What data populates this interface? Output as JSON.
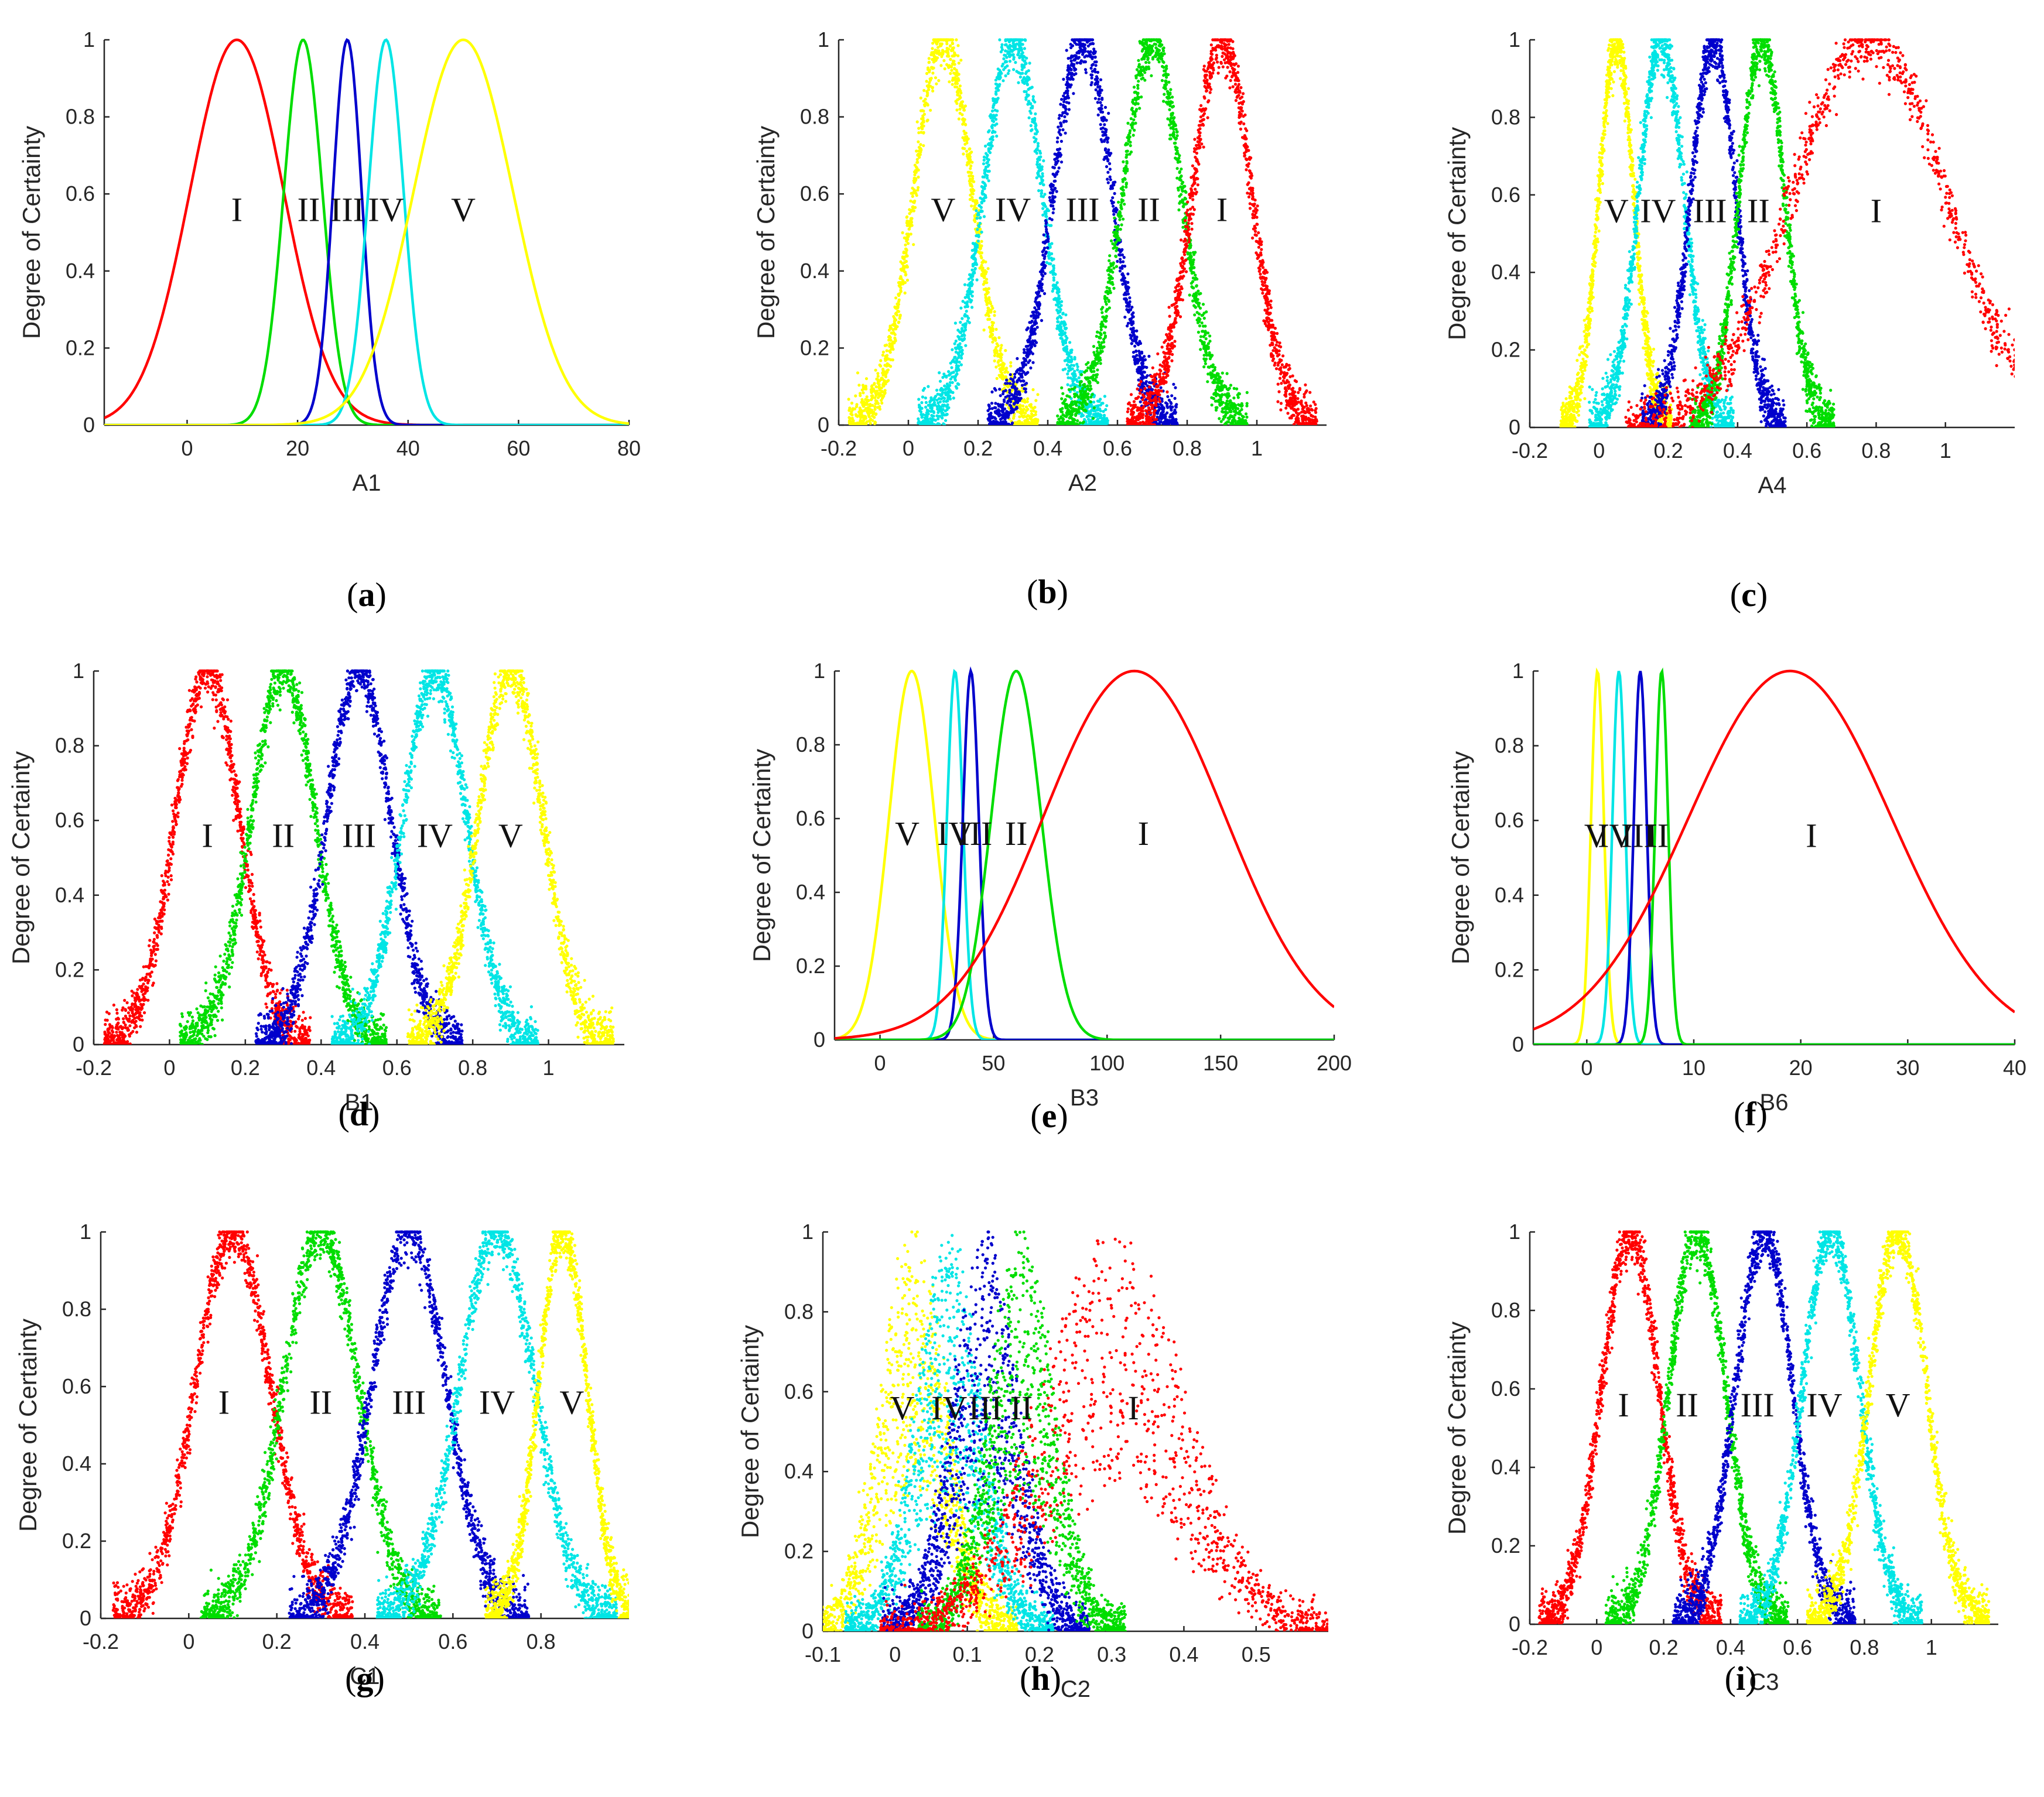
{
  "figure": {
    "y_axis_label": "Degree of Certainty",
    "y_ticks": [
      "0",
      "0.2",
      "0.4",
      "0.6",
      "0.8",
      "1"
    ]
  },
  "chart_data": [
    {
      "id": "a",
      "type": "line",
      "panel_label": "a",
      "xlabel": "A1",
      "xlim": [
        -15,
        80
      ],
      "ylim": [
        0,
        1
      ],
      "xticks": [
        0,
        20,
        40,
        60,
        80
      ],
      "xtick_labels": [
        "0",
        "20",
        "40",
        "60",
        "80"
      ],
      "series": [
        {
          "name": "I",
          "color": "#ff0000",
          "mean": 9,
          "sd": 8.5,
          "style": "line",
          "label_x": 9
        },
        {
          "name": "II",
          "color": "#00dd00",
          "mean": 21,
          "sd": 3.5,
          "style": "line",
          "label_x": 22
        },
        {
          "name": "III",
          "color": "#0000cc",
          "mean": 29,
          "sd": 2.6,
          "style": "line",
          "label_x": 29
        },
        {
          "name": "IV",
          "color": "#00e5e5",
          "mean": 36,
          "sd": 3.2,
          "style": "line",
          "label_x": 36
        },
        {
          "name": "V",
          "color": "#ffff00",
          "mean": 50,
          "sd": 9,
          "style": "line",
          "label_x": 50
        }
      ]
    },
    {
      "id": "b",
      "type": "scatter",
      "panel_label": "b",
      "xlabel": "A2",
      "xlim": [
        -0.2,
        1.2
      ],
      "ylim": [
        0,
        1
      ],
      "xticks": [
        -0.2,
        0,
        0.2,
        0.4,
        0.6,
        0.8,
        1
      ],
      "xtick_labels": [
        "-0.2",
        "0",
        "0.2",
        "0.4",
        "0.6",
        "0.8",
        "1"
      ],
      "series": [
        {
          "name": "V",
          "color": "#ffff00",
          "mean": 0.1,
          "sd": 0.085,
          "style": "scatter",
          "label_x": 0.1
        },
        {
          "name": "IV",
          "color": "#00e5e5",
          "mean": 0.3,
          "sd": 0.085,
          "style": "scatter",
          "label_x": 0.3
        },
        {
          "name": "III",
          "color": "#0000cc",
          "mean": 0.5,
          "sd": 0.085,
          "style": "scatter",
          "label_x": 0.5
        },
        {
          "name": "II",
          "color": "#00dd00",
          "mean": 0.7,
          "sd": 0.085,
          "style": "scatter",
          "label_x": 0.69
        },
        {
          "name": "I",
          "color": "#ff0000",
          "mean": 0.9,
          "sd": 0.085,
          "style": "scatter",
          "label_x": 0.9
        }
      ]
    },
    {
      "id": "c",
      "type": "scatter",
      "panel_label": "c",
      "xlabel": "A4",
      "xlim": [
        -0.2,
        1.2
      ],
      "ylim": [
        0,
        1
      ],
      "xticks": [
        -0.2,
        0,
        0.2,
        0.4,
        0.6,
        0.8,
        1
      ],
      "xtick_labels": [
        "-0.2",
        "0",
        "0.2",
        "0.4",
        "0.6",
        "0.8",
        "1"
      ],
      "series": [
        {
          "name": "V",
          "color": "#ffff00",
          "mean": 0.05,
          "sd": 0.05,
          "style": "scatter",
          "label_x": 0.05
        },
        {
          "name": "IV",
          "color": "#00e5e5",
          "mean": 0.18,
          "sd": 0.065,
          "style": "scatter",
          "label_x": 0.17
        },
        {
          "name": "III",
          "color": "#0000cc",
          "mean": 0.33,
          "sd": 0.065,
          "style": "scatter",
          "label_x": 0.32
        },
        {
          "name": "II",
          "color": "#00dd00",
          "mean": 0.47,
          "sd": 0.065,
          "style": "scatter",
          "label_x": 0.46
        },
        {
          "name": "I",
          "color": "#ff0000",
          "mean": 0.78,
          "sd": 0.22,
          "style": "scatter",
          "label_x": 0.8
        }
      ]
    },
    {
      "id": "d",
      "type": "scatter",
      "panel_label": "d",
      "xlabel": "B1",
      "xlim": [
        -0.2,
        1.2
      ],
      "ylim": [
        0,
        1
      ],
      "xticks": [
        -0.2,
        0,
        0.2,
        0.4,
        0.6,
        0.8,
        1
      ],
      "xtick_labels": [
        "-0.2",
        "0",
        "0.2",
        "0.4",
        "0.6",
        "0.8",
        "1"
      ],
      "series": [
        {
          "name": "I",
          "color": "#ff0000",
          "mean": 0.1,
          "sd": 0.085,
          "style": "scatter",
          "label_x": 0.1
        },
        {
          "name": "II",
          "color": "#00dd00",
          "mean": 0.3,
          "sd": 0.085,
          "style": "scatter",
          "label_x": 0.3
        },
        {
          "name": "III",
          "color": "#0000cc",
          "mean": 0.5,
          "sd": 0.085,
          "style": "scatter",
          "label_x": 0.5
        },
        {
          "name": "IV",
          "color": "#00e5e5",
          "mean": 0.7,
          "sd": 0.085,
          "style": "scatter",
          "label_x": 0.7
        },
        {
          "name": "V",
          "color": "#ffff00",
          "mean": 0.9,
          "sd": 0.085,
          "style": "scatter",
          "label_x": 0.9
        }
      ]
    },
    {
      "id": "e",
      "type": "line",
      "panel_label": "e",
      "xlabel": "B3",
      "xlim": [
        -20,
        200
      ],
      "ylim": [
        0,
        1
      ],
      "xticks": [
        0,
        50,
        100,
        150,
        200
      ],
      "xtick_labels": [
        "0",
        "50",
        "100",
        "150",
        "200"
      ],
      "series": [
        {
          "name": "V",
          "color": "#ffff00",
          "mean": 14,
          "sd": 10,
          "style": "line",
          "label_x": 12
        },
        {
          "name": "IV",
          "color": "#00e5e5",
          "mean": 33,
          "sd": 3.5,
          "style": "line",
          "label_x": 33
        },
        {
          "name": "III",
          "color": "#0000cc",
          "mean": 40,
          "sd": 3.5,
          "style": "line",
          "label_x": 42
        },
        {
          "name": "II",
          "color": "#00dd00",
          "mean": 60,
          "sd": 11,
          "style": "line",
          "label_x": 60
        },
        {
          "name": "I",
          "color": "#ff0000",
          "mean": 112,
          "sd": 40,
          "style": "line",
          "label_x": 116
        }
      ]
    },
    {
      "id": "f",
      "type": "line",
      "panel_label": "f",
      "xlabel": "B6",
      "xlim": [
        -5,
        40
      ],
      "ylim": [
        0,
        1
      ],
      "xticks": [
        0,
        10,
        20,
        30,
        40
      ],
      "xtick_labels": [
        "0",
        "10",
        "20",
        "30",
        "40"
      ],
      "series": [
        {
          "name": "V",
          "color": "#ffff00",
          "mean": 1,
          "sd": 0.6,
          "style": "line",
          "label_x": 0.9
        },
        {
          "name": "IV",
          "color": "#00e5e5",
          "mean": 3,
          "sd": 0.6,
          "style": "line",
          "label_x": 2.7
        },
        {
          "name": "III",
          "color": "#0000cc",
          "mean": 5,
          "sd": 0.6,
          "style": "line",
          "label_x": 4.8
        },
        {
          "name": "II",
          "color": "#00dd00",
          "mean": 7,
          "sd": 0.6,
          "style": "line",
          "label_x": 6.6
        },
        {
          "name": "I",
          "color": "#ff0000",
          "mean": 19,
          "sd": 9.5,
          "style": "line",
          "label_x": 21
        }
      ]
    },
    {
      "id": "g",
      "type": "scatter",
      "panel_label": "g",
      "xlabel": "C1",
      "xlim": [
        -0.2,
        1.0
      ],
      "ylim": [
        0,
        1
      ],
      "xticks": [
        -0.2,
        0,
        0.2,
        0.4,
        0.6,
        0.8
      ],
      "xtick_labels": [
        "-0.2",
        "0",
        "0.2",
        "0.4",
        "0.6",
        "0.8"
      ],
      "series": [
        {
          "name": "I",
          "color": "#ff0000",
          "mean": 0.1,
          "sd": 0.085,
          "style": "scatter",
          "label_x": 0.08
        },
        {
          "name": "II",
          "color": "#00dd00",
          "mean": 0.3,
          "sd": 0.085,
          "style": "scatter",
          "label_x": 0.3
        },
        {
          "name": "III",
          "color": "#0000cc",
          "mean": 0.5,
          "sd": 0.085,
          "style": "scatter",
          "label_x": 0.5
        },
        {
          "name": "IV",
          "color": "#00e5e5",
          "mean": 0.7,
          "sd": 0.085,
          "style": "scatter",
          "label_x": 0.7
        },
        {
          "name": "V",
          "color": "#ffff00",
          "mean": 0.85,
          "sd": 0.055,
          "style": "scatter",
          "label_x": 0.87
        }
      ]
    },
    {
      "id": "h",
      "type": "scatter",
      "panel_label": "h",
      "xlabel": "C2",
      "xlim": [
        -0.1,
        0.6
      ],
      "ylim": [
        0,
        1
      ],
      "xticks": [
        -0.1,
        0,
        0.1,
        0.2,
        0.3,
        0.4,
        0.5
      ],
      "xtick_labels": [
        "-0.1",
        "0",
        "0.1",
        "0.2",
        "0.3",
        "0.4",
        "0.5"
      ],
      "series": [
        {
          "name": "V",
          "color": "#ffff00",
          "mean": 0.025,
          "sd": 0.045,
          "style": "scatter",
          "label_x": 0.01
        },
        {
          "name": "IV",
          "color": "#00e5e5",
          "mean": 0.075,
          "sd": 0.045,
          "style": "scatter",
          "label_x": 0.075
        },
        {
          "name": "III",
          "color": "#0000cc",
          "mean": 0.125,
          "sd": 0.045,
          "style": "scatter",
          "label_x": 0.125
        },
        {
          "name": "II",
          "color": "#00dd00",
          "mean": 0.175,
          "sd": 0.045,
          "style": "scatter",
          "label_x": 0.175
        },
        {
          "name": "I",
          "color": "#ff0000",
          "mean": 0.3,
          "sd": 0.1,
          "style": "scatter",
          "label_x": 0.33
        }
      ]
    },
    {
      "id": "i",
      "type": "scatter",
      "panel_label": "i",
      "xlabel": "C3",
      "xlim": [
        -0.2,
        1.2
      ],
      "ylim": [
        0,
        1
      ],
      "xticks": [
        -0.2,
        0,
        0.2,
        0.4,
        0.6,
        0.8,
        1
      ],
      "xtick_labels": [
        "-0.2",
        "0",
        "0.2",
        "0.4",
        "0.6",
        "0.8",
        "1"
      ],
      "series": [
        {
          "name": "I",
          "color": "#ff0000",
          "mean": 0.1,
          "sd": 0.085,
          "style": "scatter",
          "label_x": 0.08
        },
        {
          "name": "II",
          "color": "#00dd00",
          "mean": 0.3,
          "sd": 0.085,
          "style": "scatter",
          "label_x": 0.27
        },
        {
          "name": "III",
          "color": "#0000cc",
          "mean": 0.5,
          "sd": 0.085,
          "style": "scatter",
          "label_x": 0.48
        },
        {
          "name": "IV",
          "color": "#00e5e5",
          "mean": 0.7,
          "sd": 0.085,
          "style": "scatter",
          "label_x": 0.68
        },
        {
          "name": "V",
          "color": "#ffff00",
          "mean": 0.9,
          "sd": 0.085,
          "style": "scatter",
          "label_x": 0.9
        }
      ]
    }
  ]
}
